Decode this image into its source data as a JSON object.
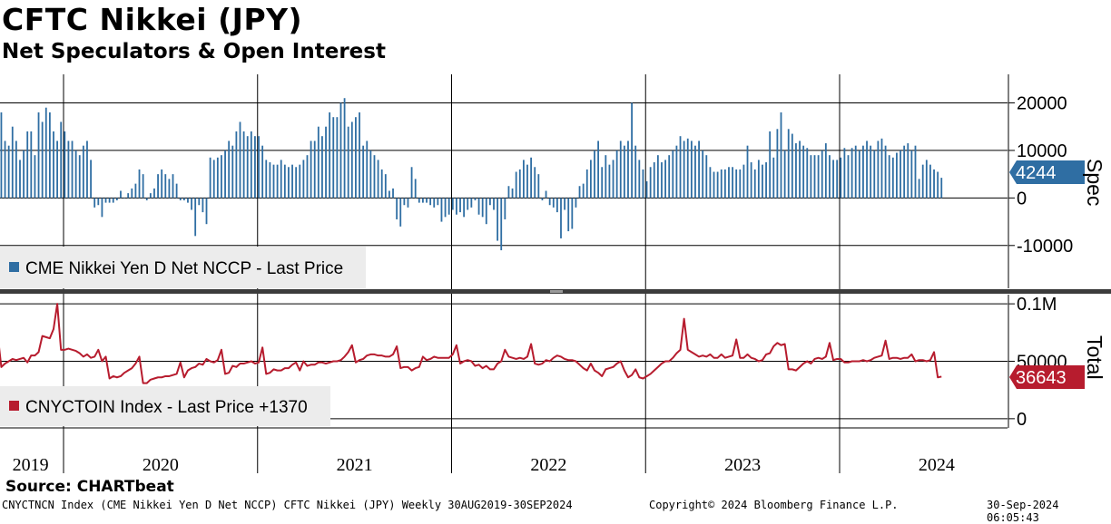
{
  "header": {
    "title": "CFTC Nikkei (JPY)",
    "subtitle": "Net Speculators & Open Interest"
  },
  "footer": {
    "source": "Source: CHARTbeat",
    "ticker_info": "CNYCTNCN Index (CME Nikkei Yen D Net NCCP) CFTC Nikkei (JPY)  Weekly 30AUG2019-30SEP2024",
    "copyright": "Copyright© 2024 Bloomberg Finance L.P.",
    "timestamp": "30-Sep-2024 06:05:43"
  },
  "colors": {
    "bar": "#2f6ea3",
    "line": "#b71c2e",
    "grid": "#000000"
  },
  "chart_data": [
    {
      "type": "bar",
      "panel": "top",
      "axis_title": "Spec",
      "ylim": [
        -19000,
        26000
      ],
      "yticks": [
        20000,
        10000,
        0,
        -10000
      ],
      "ytick_labels": [
        "20000",
        "10000",
        "0",
        "-10000"
      ],
      "legend": "CME Nikkei Yen D Net NCCP - Last Price",
      "last_value_label": "4244",
      "last_value": 4244,
      "x_start": 2019.66,
      "x_step_years": 0.01923,
      "values": [
        10000,
        18000,
        12000,
        11000,
        15000,
        12000,
        8000,
        10000,
        14000,
        14000,
        9000,
        18000,
        16000,
        19000,
        18000,
        14000,
        12000,
        16000,
        14000,
        12000,
        12000,
        10000,
        9000,
        11000,
        12000,
        8000,
        -2000,
        -1500,
        -4000,
        -1000,
        -1000,
        -1000,
        -500,
        1500,
        0,
        1000,
        2000,
        3000,
        6000,
        5000,
        -500,
        1000,
        2000,
        5000,
        6000,
        5000,
        4000,
        5000,
        3000,
        -500,
        -500,
        -1000,
        -2500,
        -8000,
        -1500,
        -3000,
        -5500,
        8500,
        8000,
        8500,
        9000,
        10000,
        12000,
        11000,
        14000,
        16000,
        14000,
        13000,
        14000,
        13000,
        13000,
        11000,
        8000,
        7500,
        7000,
        7000,
        8000,
        7000,
        6500,
        7000,
        6500,
        7000,
        8000,
        9000,
        12000,
        12000,
        15000,
        13000,
        15000,
        18000,
        17000,
        17000,
        20000,
        21000,
        15000,
        16000,
        17000,
        18000,
        11000,
        12000,
        10000,
        9000,
        8000,
        6000,
        5000,
        1500,
        2000,
        -4500,
        -6000,
        -1500,
        -2000,
        6500,
        4000,
        -1000,
        -1000,
        -1000,
        -1500,
        -2000,
        -1500,
        -5000,
        -4000,
        -3500,
        -2500,
        -3500,
        -3000,
        -4000,
        -2500,
        -2000,
        -500,
        -3500,
        -4000,
        -5500,
        -1500,
        -2500,
        -9000,
        -11000,
        -4500,
        2500,
        2000,
        5500,
        6000,
        8000,
        7000,
        8500,
        6500,
        5000,
        -500,
        1500,
        -1500,
        -2000,
        -3000,
        -8500,
        -2500,
        -7000,
        -6500,
        -2000,
        2500,
        3000,
        6000,
        8000,
        10000,
        12000,
        6500,
        9000,
        7000,
        8000,
        10000,
        12000,
        11000,
        12000,
        20000,
        11000,
        8000,
        6000,
        3500,
        6500,
        7500,
        9000,
        7500,
        8000,
        9000,
        10000,
        11000,
        13000,
        12000,
        12500,
        12000,
        11000,
        12000,
        10000,
        9000,
        6500,
        5500,
        5500,
        6000,
        6000,
        6500,
        6500,
        6000,
        6000,
        7000,
        11000,
        7500,
        6000,
        8000,
        7000,
        7500,
        14000,
        8500,
        14500,
        18000,
        10000,
        14500,
        13500,
        11500,
        12000,
        11000,
        10500,
        9000,
        9000,
        9000,
        10000,
        11500,
        9000,
        8000,
        8000,
        8500,
        10500,
        9000,
        10500,
        11000,
        10000,
        11000,
        12000,
        11000,
        10000,
        12000,
        12500,
        11000,
        9000,
        8500,
        9500,
        10000,
        11000,
        11500,
        10000,
        11000,
        4000,
        7000,
        8000,
        7000,
        6000,
        5500,
        4244
      ]
    },
    {
      "type": "line",
      "panel": "bottom",
      "axis_title": "Total",
      "ylim": [
        -8000,
        108000
      ],
      "yticks": [
        100000,
        50000,
        0
      ],
      "ytick_labels": [
        "0.1M",
        "50000",
        "0"
      ],
      "legend": "CNYCTOIN Index - Last Price +1370",
      "last_value_label": "36643",
      "last_value": 36643,
      "x_start": 2019.66,
      "x_step_years": 0.01923,
      "values": [
        74000,
        45000,
        48000,
        50000,
        52000,
        51000,
        52000,
        53000,
        49000,
        55000,
        55000,
        58000,
        72000,
        71000,
        70000,
        78000,
        100000,
        60000,
        60000,
        61000,
        60000,
        59000,
        57000,
        54000,
        56000,
        53000,
        54000,
        60000,
        50000,
        54000,
        35000,
        37000,
        36000,
        37000,
        40000,
        42000,
        44000,
        48000,
        54000,
        31000,
        31000,
        34000,
        35000,
        36000,
        36000,
        37000,
        37000,
        38000,
        39000,
        49000,
        36000,
        42000,
        44000,
        45000,
        48000,
        47000,
        52000,
        50000,
        49000,
        51000,
        60000,
        39000,
        40000,
        46000,
        45000,
        48000,
        48000,
        49000,
        50000,
        48000,
        49000,
        62000,
        39000,
        40000,
        43000,
        42000,
        42000,
        44000,
        44000,
        47000,
        49000,
        42000,
        50000,
        46000,
        47000,
        47000,
        49000,
        49000,
        48000,
        49000,
        50000,
        50000,
        51000,
        54000,
        58000,
        64000,
        49000,
        51000,
        52000,
        55000,
        56000,
        56000,
        55000,
        55000,
        54000,
        54000,
        56000,
        63000,
        44000,
        45000,
        45000,
        42000,
        44000,
        45000,
        54000,
        51000,
        52000,
        54000,
        53000,
        53000,
        53000,
        53000,
        56000,
        64000,
        48000,
        50000,
        51000,
        50000,
        46000,
        47000,
        44000,
        46000,
        43000,
        43000,
        48000,
        50000,
        60000,
        54000,
        53000,
        52000,
        53000,
        52000,
        54000,
        65000,
        48000,
        47000,
        48000,
        51000,
        50000,
        53000,
        55000,
        54000,
        52000,
        51000,
        51000,
        50000,
        47000,
        44000,
        42000,
        48000,
        42000,
        40000,
        37000,
        43000,
        44000,
        45000,
        48000,
        50000,
        42000,
        36000,
        38000,
        43000,
        36000,
        35000,
        37000,
        39000,
        42000,
        45000,
        48000,
        50000,
        50000,
        53000,
        57000,
        60000,
        87000,
        60000,
        58000,
        56000,
        54000,
        55000,
        54000,
        56000,
        53000,
        53000,
        56000,
        53000,
        54000,
        55000,
        69000,
        53000,
        53000,
        56000,
        53000,
        52000,
        50000,
        51000,
        56000,
        57000,
        63000,
        66000,
        64000,
        65000,
        43000,
        43000,
        42000,
        45000,
        48000,
        50000,
        48000,
        52000,
        53000,
        52000,
        54000,
        66000,
        51000,
        52000,
        52000,
        49000,
        49000,
        50000,
        50000,
        50000,
        51000,
        50000,
        51000,
        53000,
        54000,
        55000,
        68000,
        52000,
        53000,
        53000,
        52000,
        53000,
        53000,
        56000,
        50000,
        51000,
        51000,
        50000,
        51000,
        58000,
        36000,
        36643
      ]
    }
  ],
  "x_axis": {
    "year_labels": [
      "2019",
      "2020",
      "2021",
      "2022",
      "2023",
      "2024"
    ],
    "year_label_positions": [
      2019.83,
      2020.5,
      2021.5,
      2022.5,
      2023.5,
      2024.5
    ],
    "year_boundaries": [
      2020.0,
      2021.0,
      2022.0,
      2023.0,
      2024.0
    ]
  }
}
